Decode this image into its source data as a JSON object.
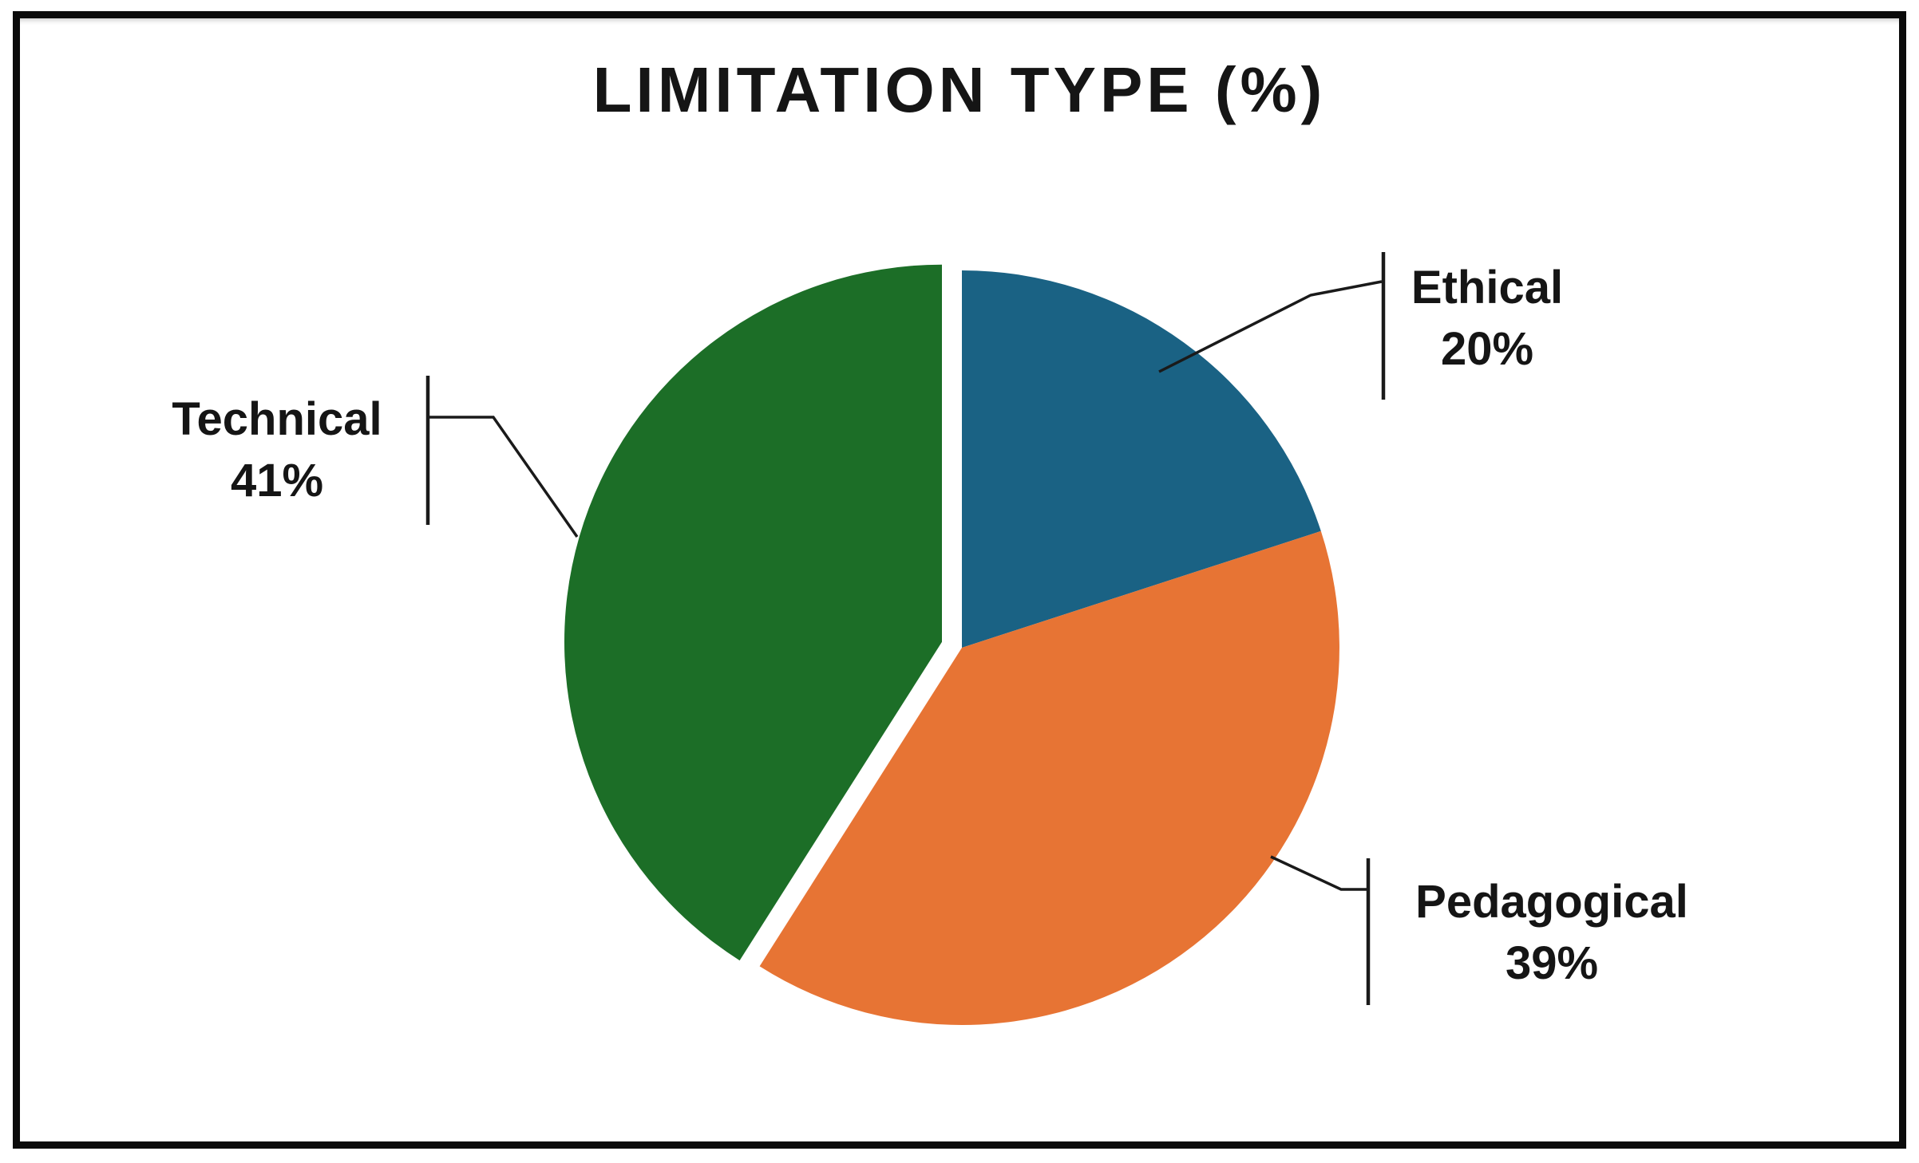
{
  "figure": {
    "title": "LIMITATION TYPE (%)"
  },
  "chart_data": {
    "type": "pie",
    "title": "LIMITATION TYPE (%)",
    "legend": "none",
    "label_style": "callouts-with-leader-lines",
    "start_reference": "12-oclock",
    "direction": "clockwise",
    "total": 100,
    "slices": [
      {
        "label": "Ethical",
        "value": 20,
        "display": "20%",
        "color": "#1A6284",
        "explode": 0
      },
      {
        "label": "Pedagogical",
        "value": 39,
        "display": "39%",
        "color": "#E77434",
        "explode": 0
      },
      {
        "label": "Technical",
        "value": 41,
        "display": "41%",
        "color": "#1C6E27",
        "explode": 0.055
      }
    ]
  }
}
